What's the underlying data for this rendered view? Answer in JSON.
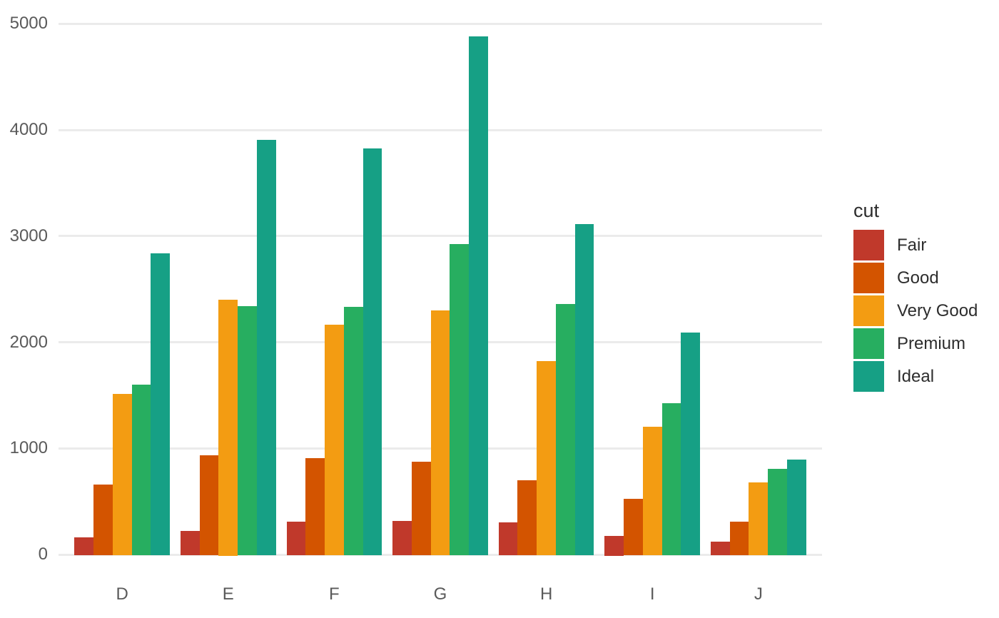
{
  "chart_data": {
    "type": "bar",
    "title": "",
    "xlabel": "",
    "ylabel": "",
    "grid": true,
    "legend_title": "cut",
    "legend_position": "right",
    "categories": [
      "D",
      "E",
      "F",
      "G",
      "H",
      "I",
      "J"
    ],
    "series": [
      {
        "name": "Fair",
        "color": "#C0392B",
        "values": [
          163,
          224,
          312,
          314,
          303,
          175,
          119
        ]
      },
      {
        "name": "Good",
        "color": "#D35400",
        "values": [
          662,
          933,
          909,
          871,
          702,
          522,
          307
        ]
      },
      {
        "name": "Very Good",
        "color": "#F39C12",
        "values": [
          1513,
          2400,
          2164,
          2299,
          1824,
          1204,
          678
        ]
      },
      {
        "name": "Premium",
        "color": "#27AE60",
        "values": [
          1603,
          2337,
          2331,
          2924,
          2360,
          1428,
          808
        ]
      },
      {
        "name": "Ideal",
        "color": "#16A085",
        "values": [
          2834,
          3903,
          3826,
          4884,
          3115,
          2093,
          896
        ]
      }
    ],
    "y_ticks": [
      0,
      1000,
      2000,
      3000,
      4000,
      5000
    ],
    "y_tick_labels": [
      "0",
      "1000",
      "2000",
      "3000",
      "4000",
      "5000"
    ],
    "ylim": [
      0,
      5128
    ],
    "x_tick_labels": [
      "D",
      "E",
      "F",
      "G",
      "H",
      "I",
      "J"
    ]
  },
  "colors": {
    "background": "#FFFFFF",
    "grid": "#EBEBEB",
    "axis_text": "#5A5A5A",
    "legend_text": "#2D2D2D"
  }
}
